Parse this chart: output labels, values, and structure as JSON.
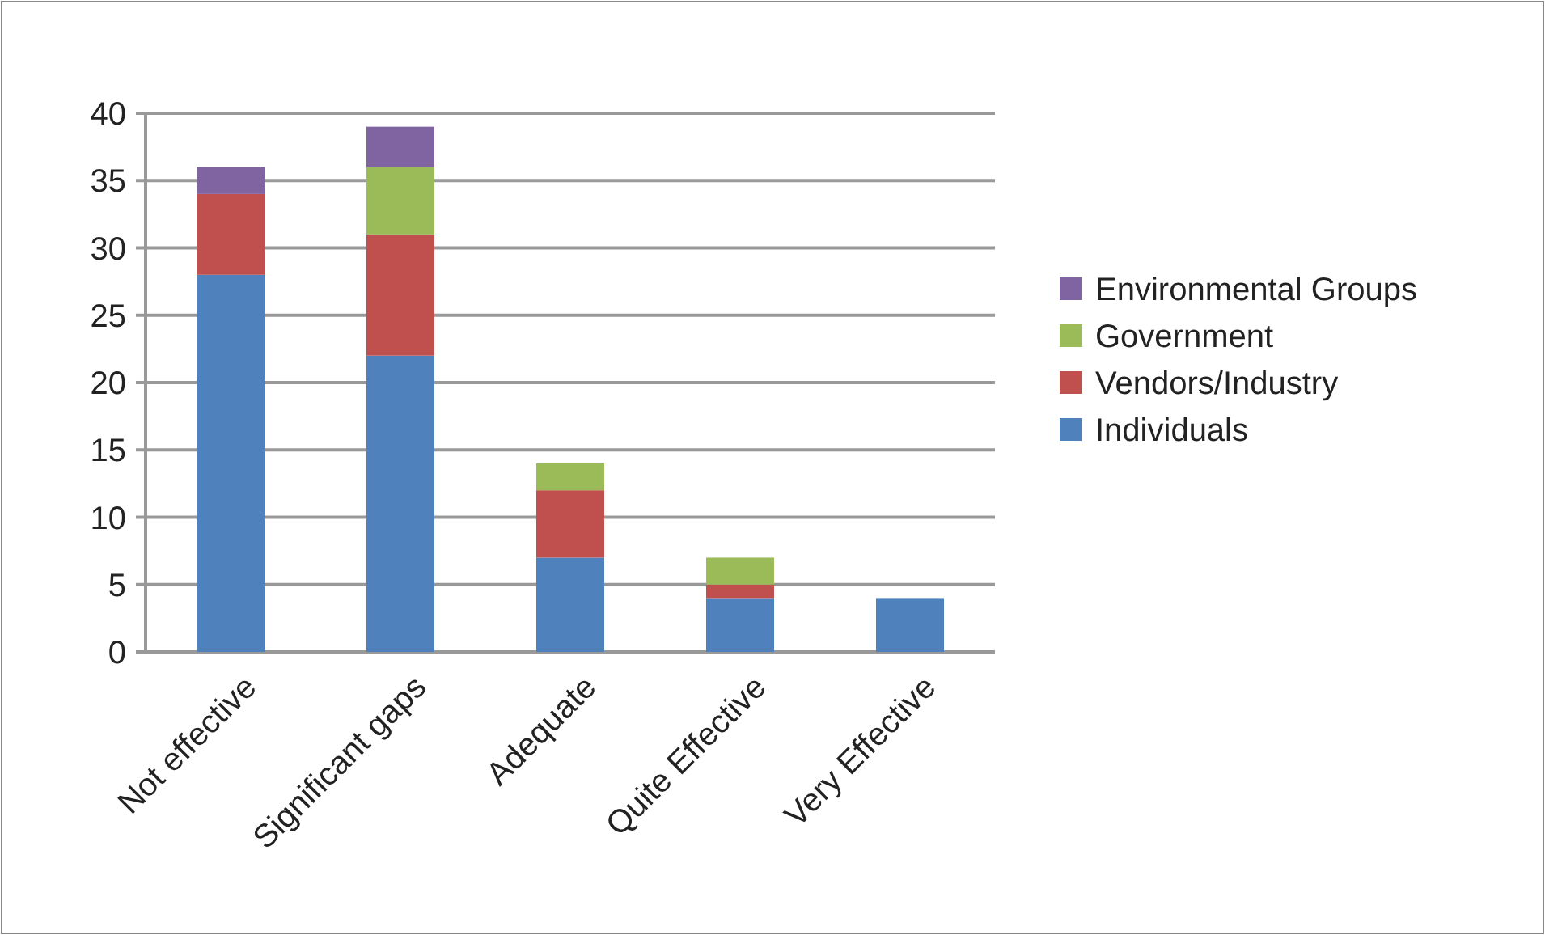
{
  "chart_data": {
    "type": "bar",
    "stacked": true,
    "categories": [
      "Not effective",
      "Significant gaps",
      "Adequate",
      "Quite Effective",
      "Very Effective"
    ],
    "series": [
      {
        "name": "Individuals",
        "color": "#4f81bd",
        "values": [
          28,
          22,
          7,
          4,
          4
        ]
      },
      {
        "name": "Vendors/Industry",
        "color": "#c0504d",
        "values": [
          6,
          9,
          5,
          1,
          0
        ]
      },
      {
        "name": "Government",
        "color": "#9bbb59",
        "values": [
          0,
          5,
          2,
          2,
          0
        ]
      },
      {
        "name": "Environmental Groups",
        "color": "#8064a2",
        "values": [
          2,
          3,
          0,
          0,
          0
        ]
      }
    ],
    "ylim": [
      0,
      40
    ],
    "yticks": [
      0,
      5,
      10,
      15,
      20,
      25,
      30,
      35,
      40
    ],
    "grid": "y",
    "legend": "right"
  }
}
